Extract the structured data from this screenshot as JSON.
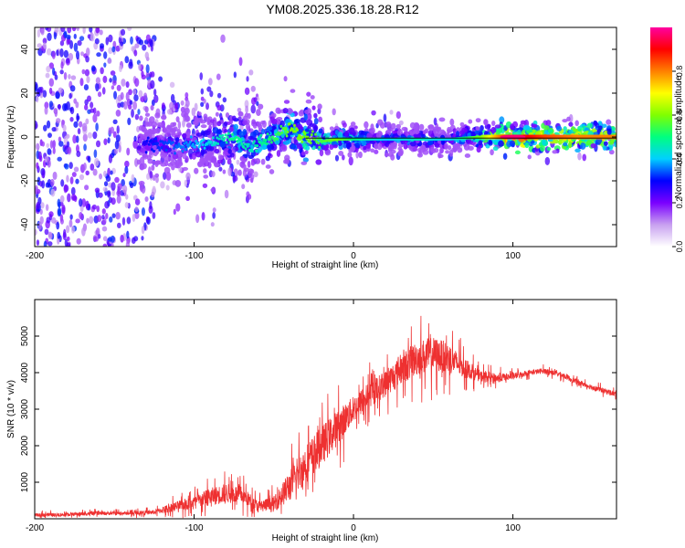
{
  "title": "YM08.2025.336.18.28.R12",
  "chart_data": [
    {
      "type": "heatmap",
      "name": "spectrogram",
      "xlabel": "Height of straight line (km)",
      "ylabel": "Frequency (Hz)",
      "xlim": [
        -200,
        165
      ],
      "ylim": [
        -50,
        50
      ],
      "xticks": [
        "-200",
        "-100",
        "0",
        "100"
      ],
      "xtick_values": [
        -200,
        -100,
        0,
        100
      ],
      "yticks": [
        "-40",
        "-20",
        "0",
        "20",
        "40"
      ],
      "ytick_values": [
        -40,
        -20,
        0,
        20,
        40
      ],
      "colorbar": {
        "label": "Normalized spectral amplitude",
        "range": [
          0,
          1
        ],
        "ticks": [
          "0.0",
          "0.2",
          "0.4",
          "0.6",
          "0.8"
        ],
        "tick_values": [
          0.0,
          0.2,
          0.4,
          0.6,
          0.8
        ],
        "stops": [
          "#ffffff",
          "#c8a0f0",
          "#7a00ff",
          "#0000ff",
          "#00d0ff",
          "#00ff80",
          "#80ff00",
          "#ffff00",
          "#ff8000",
          "#ff0000",
          "#ff00a0"
        ]
      },
      "ridge": {
        "x": [
          -130,
          -110,
          -95,
          -85,
          -75,
          -65,
          -55,
          -45,
          -40,
          -30,
          -20,
          -10,
          0,
          20,
          40,
          60,
          80,
          100,
          120,
          140,
          165
        ],
        "y": [
          -3,
          -4,
          -3,
          -2,
          1,
          -5,
          -2,
          3,
          4,
          -1,
          -2,
          -1,
          -1,
          -1,
          -1,
          -1,
          0,
          0,
          0,
          0,
          0
        ],
        "amplitude": [
          0.3,
          0.35,
          0.4,
          0.45,
          0.5,
          0.45,
          0.5,
          0.55,
          0.6,
          0.6,
          0.55,
          0.6,
          0.5,
          0.4,
          0.45,
          0.4,
          0.6,
          0.95,
          0.85,
          0.8,
          0.8
        ]
      }
    },
    {
      "type": "line",
      "name": "snr",
      "xlabel": "Height of straight line (km)",
      "ylabel": "SNR (10 * v/v)",
      "xlim": [
        -200,
        165
      ],
      "ylim": [
        0,
        6000
      ],
      "xticks": [
        "-200",
        "-100",
        "0",
        "100"
      ],
      "xtick_values": [
        -200,
        -100,
        0,
        100
      ],
      "yticks": [
        "1000",
        "2000",
        "3000",
        "4000",
        "5000"
      ],
      "ytick_values": [
        1000,
        2000,
        3000,
        4000,
        5000
      ],
      "color": "#ee3030",
      "x": [
        -200,
        -180,
        -160,
        -140,
        -125,
        -115,
        -100,
        -90,
        -80,
        -70,
        -60,
        -50,
        -40,
        -30,
        -20,
        -10,
        0,
        10,
        20,
        30,
        40,
        50,
        60,
        70,
        80,
        90,
        100,
        110,
        120,
        130,
        140,
        150,
        165
      ],
      "y": [
        100,
        120,
        150,
        150,
        180,
        300,
        450,
        600,
        700,
        650,
        350,
        400,
        900,
        1500,
        2000,
        2500,
        3000,
        3400,
        3700,
        4100,
        4400,
        4500,
        4400,
        4100,
        3900,
        3850,
        3900,
        4000,
        4050,
        3950,
        3750,
        3600,
        3400
      ],
      "noise": [
        80,
        80,
        80,
        80,
        100,
        200,
        300,
        400,
        450,
        400,
        250,
        350,
        700,
        900,
        900,
        800,
        600,
        600,
        600,
        700,
        800,
        800,
        700,
        400,
        250,
        200,
        150,
        120,
        120,
        120,
        120,
        120,
        120
      ]
    }
  ]
}
